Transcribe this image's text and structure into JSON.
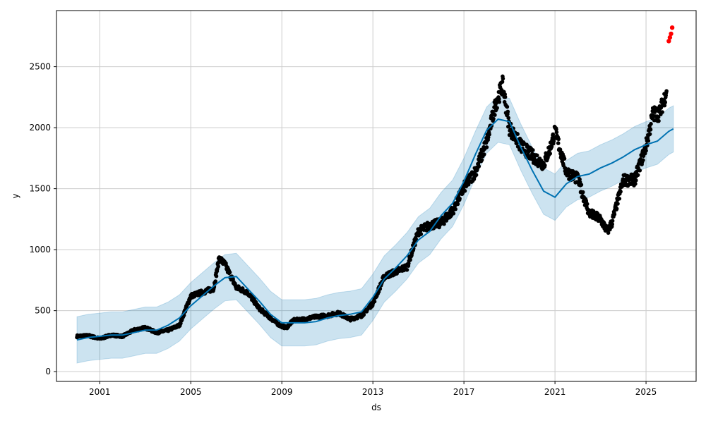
{
  "chart_data": {
    "type": "line",
    "title": "",
    "xlabel": "ds",
    "ylabel": "y",
    "xlim": [
      1999.1,
      2027.2
    ],
    "ylim": [
      -80,
      2960
    ],
    "x_ticks": [
      2001,
      2005,
      2009,
      2013,
      2017,
      2021,
      2025
    ],
    "x_tick_labels": [
      "2001",
      "2005",
      "2009",
      "2013",
      "2017",
      "2021",
      "2025"
    ],
    "y_ticks": [
      0,
      500,
      1000,
      1500,
      2000,
      2500
    ],
    "y_tick_labels": [
      "0",
      "500",
      "1000",
      "1500",
      "2000",
      "2500"
    ],
    "grid": true,
    "colors": {
      "forecast_line": "#0072B2",
      "uncertainty_band": "#0072B2",
      "observed_points": "#000000",
      "highlighted_points": "#ff0000"
    },
    "series": [
      {
        "role": "observed",
        "x": [
          2000.0,
          2000.5,
          2001.0,
          2001.5,
          2002.0,
          2002.5,
          2003.0,
          2003.5,
          2004.0,
          2004.5,
          2005.0,
          2005.5,
          2006.0,
          2006.25,
          2006.5,
          2007.0,
          2007.5,
          2008.0,
          2008.5,
          2008.9,
          2009.2,
          2009.5,
          2010.0,
          2010.5,
          2011.0,
          2011.5,
          2012.0,
          2012.5,
          2013.0,
          2013.5,
          2014.0,
          2014.5,
          2015.0,
          2015.5,
          2016.0,
          2016.5,
          2017.0,
          2017.5,
          2018.0,
          2018.4,
          2018.7,
          2019.0,
          2019.5,
          2020.0,
          2020.5,
          2020.8,
          2021.0,
          2021.5,
          2022.0,
          2022.5,
          2023.0,
          2023.3,
          2023.5,
          2024.0,
          2024.5,
          2025.0,
          2025.3,
          2025.6,
          2025.9
        ],
        "y": [
          290,
          295,
          270,
          300,
          290,
          340,
          360,
          320,
          340,
          380,
          620,
          650,
          680,
          930,
          880,
          690,
          650,
          520,
          440,
          380,
          360,
          420,
          430,
          450,
          460,
          480,
          430,
          460,
          560,
          780,
          820,
          860,
          1150,
          1200,
          1220,
          1320,
          1510,
          1640,
          1880,
          2200,
          2350,
          2000,
          1850,
          1770,
          1700,
          1840,
          1970,
          1640,
          1580,
          1300,
          1250,
          1150,
          1220,
          1570,
          1570,
          1850,
          2110,
          2120,
          2300
        ]
      },
      {
        "role": "observed_recent",
        "x": [
          2026.0,
          2026.05,
          2026.1,
          2026.15
        ],
        "y": [
          2710,
          2740,
          2770,
          2820
        ]
      },
      {
        "role": "forecast",
        "x": [
          2000.0,
          2000.5,
          2001.0,
          2001.5,
          2002.0,
          2002.5,
          2003.0,
          2003.5,
          2004.0,
          2004.5,
          2005.0,
          2005.5,
          2006.0,
          2006.5,
          2007.0,
          2007.5,
          2008.0,
          2008.5,
          2009.0,
          2009.5,
          2010.0,
          2010.5,
          2011.0,
          2011.5,
          2012.0,
          2012.5,
          2013.0,
          2013.5,
          2014.0,
          2014.5,
          2015.0,
          2015.5,
          2016.0,
          2016.5,
          2017.0,
          2017.5,
          2018.0,
          2018.5,
          2019.0,
          2019.5,
          2020.0,
          2020.5,
          2021.0,
          2021.5,
          2022.0,
          2022.5,
          2023.0,
          2023.5,
          2024.0,
          2024.5,
          2025.0,
          2025.5,
          2026.0,
          2026.2
        ],
        "y": [
          260,
          280,
          290,
          300,
          300,
          320,
          340,
          340,
          380,
          440,
          540,
          620,
          700,
          770,
          780,
          680,
          580,
          470,
          400,
          400,
          400,
          410,
          440,
          460,
          470,
          490,
          610,
          760,
          850,
          950,
          1080,
          1150,
          1280,
          1380,
          1560,
          1780,
          1980,
          2070,
          2050,
          1840,
          1650,
          1480,
          1430,
          1540,
          1600,
          1620,
          1670,
          1710,
          1760,
          1820,
          1860,
          1890,
          1970,
          1990
        ]
      },
      {
        "role": "uncertainty_lower",
        "x": [
          2000.0,
          2000.5,
          2001.0,
          2001.5,
          2002.0,
          2002.5,
          2003.0,
          2003.5,
          2004.0,
          2004.5,
          2005.0,
          2005.5,
          2006.0,
          2006.5,
          2007.0,
          2007.5,
          2008.0,
          2008.5,
          2009.0,
          2009.5,
          2010.0,
          2010.5,
          2011.0,
          2011.5,
          2012.0,
          2012.5,
          2013.0,
          2013.5,
          2014.0,
          2014.5,
          2015.0,
          2015.5,
          2016.0,
          2016.5,
          2017.0,
          2017.5,
          2018.0,
          2018.5,
          2019.0,
          2019.5,
          2020.0,
          2020.5,
          2021.0,
          2021.5,
          2022.0,
          2022.5,
          2023.0,
          2023.5,
          2024.0,
          2024.5,
          2025.0,
          2025.5,
          2026.0,
          2026.2
        ],
        "y": [
          70,
          90,
          100,
          110,
          110,
          130,
          150,
          150,
          190,
          250,
          350,
          430,
          510,
          580,
          590,
          490,
          390,
          280,
          210,
          210,
          210,
          220,
          250,
          270,
          280,
          300,
          420,
          570,
          660,
          760,
          890,
          960,
          1090,
          1190,
          1370,
          1590,
          1790,
          1880,
          1860,
          1650,
          1460,
          1290,
          1240,
          1350,
          1410,
          1430,
          1480,
          1520,
          1570,
          1630,
          1670,
          1700,
          1780,
          1800
        ]
      },
      {
        "role": "uncertainty_upper",
        "x": [
          2000.0,
          2000.5,
          2001.0,
          2001.5,
          2002.0,
          2002.5,
          2003.0,
          2003.5,
          2004.0,
          2004.5,
          2005.0,
          2005.5,
          2006.0,
          2006.5,
          2007.0,
          2007.5,
          2008.0,
          2008.5,
          2009.0,
          2009.5,
          2010.0,
          2010.5,
          2011.0,
          2011.5,
          2012.0,
          2012.5,
          2013.0,
          2013.5,
          2014.0,
          2014.5,
          2015.0,
          2015.5,
          2016.0,
          2016.5,
          2017.0,
          2017.5,
          2018.0,
          2018.5,
          2019.0,
          2019.5,
          2020.0,
          2020.5,
          2021.0,
          2021.5,
          2022.0,
          2022.5,
          2023.0,
          2023.5,
          2024.0,
          2024.5,
          2025.0,
          2025.5,
          2026.0,
          2026.2
        ],
        "y": [
          450,
          470,
          480,
          490,
          490,
          510,
          530,
          530,
          570,
          630,
          730,
          810,
          890,
          960,
          970,
          870,
          770,
          660,
          590,
          590,
          590,
          600,
          630,
          650,
          660,
          680,
          800,
          950,
          1040,
          1140,
          1270,
          1340,
          1470,
          1570,
          1750,
          1970,
          2170,
          2260,
          2240,
          2030,
          1840,
          1670,
          1620,
          1730,
          1790,
          1810,
          1860,
          1900,
          1950,
          2010,
          2050,
          2080,
          2160,
          2180
        ]
      }
    ]
  }
}
